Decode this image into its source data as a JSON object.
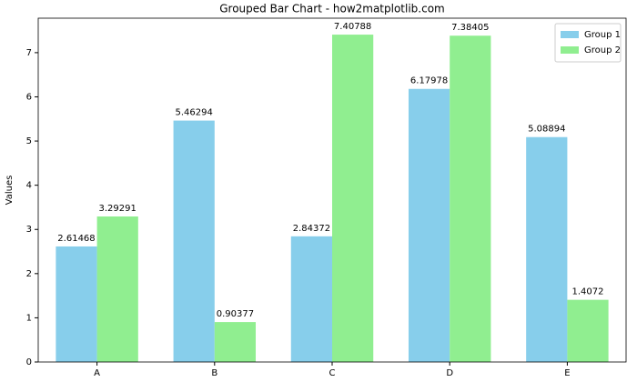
{
  "chart_data": {
    "type": "grouped_bar",
    "title": "Grouped Bar Chart - how2matplotlib.com",
    "y_label": "Values",
    "categories": [
      "A",
      "B",
      "C",
      "D",
      "E"
    ],
    "series": [
      {
        "name": "Group 1",
        "color": "#87ceeb",
        "values": [
          2.61468,
          5.46294,
          2.84372,
          6.17978,
          5.08894
        ]
      },
      {
        "name": "Group 2",
        "color": "#90ee90",
        "values": [
          3.29291,
          0.90377,
          7.40788,
          7.38405,
          1.4072
        ]
      }
    ],
    "ylim": [
      0,
      7.78
    ],
    "yticks": [
      0,
      1,
      2,
      3,
      4,
      5,
      6,
      7
    ],
    "grid": false,
    "legend": "upper right"
  }
}
